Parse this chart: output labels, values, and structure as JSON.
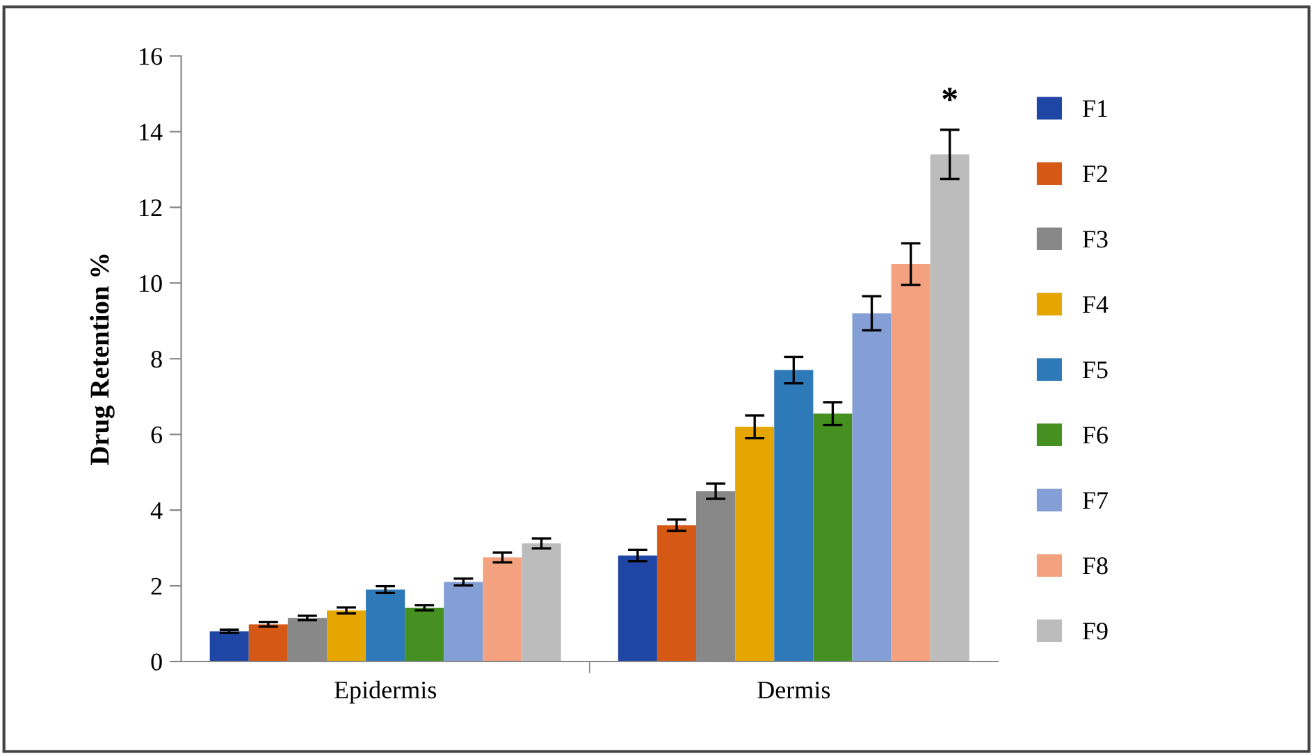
{
  "chart_data": {
    "type": "bar",
    "ylabel": "Drug Retention %",
    "categories": [
      "Epidermis",
      "Dermis"
    ],
    "series": [
      {
        "name": "F1",
        "color": "#1f45a5",
        "values": [
          0.8,
          2.8
        ],
        "errors": [
          0.04,
          0.15
        ]
      },
      {
        "name": "F2",
        "color": "#d55815",
        "values": [
          0.98,
          3.6
        ],
        "errors": [
          0.06,
          0.15
        ]
      },
      {
        "name": "F3",
        "color": "#888888",
        "values": [
          1.15,
          4.5
        ],
        "errors": [
          0.06,
          0.2
        ]
      },
      {
        "name": "F4",
        "color": "#e5a602",
        "values": [
          1.35,
          6.2
        ],
        "errors": [
          0.08,
          0.3
        ]
      },
      {
        "name": "F5",
        "color": "#2e79b8",
        "values": [
          1.9,
          7.7
        ],
        "errors": [
          0.09,
          0.35
        ]
      },
      {
        "name": "F6",
        "color": "#459020",
        "values": [
          1.42,
          6.55
        ],
        "errors": [
          0.07,
          0.3
        ]
      },
      {
        "name": "F7",
        "color": "#849ed6",
        "values": [
          2.1,
          9.2
        ],
        "errors": [
          0.09,
          0.45
        ]
      },
      {
        "name": "F8",
        "color": "#f3a17e",
        "values": [
          2.75,
          10.5
        ],
        "errors": [
          0.13,
          0.55
        ]
      },
      {
        "name": "F9",
        "color": "#bcbcbc",
        "values": [
          3.12,
          13.4
        ],
        "errors": [
          0.13,
          0.65
        ]
      }
    ],
    "ylim": [
      0,
      16
    ],
    "yticks": [
      0,
      2,
      4,
      6,
      8,
      10,
      12,
      14,
      16
    ],
    "grid": false,
    "legend": "right",
    "annotations": [
      "*"
    ]
  }
}
